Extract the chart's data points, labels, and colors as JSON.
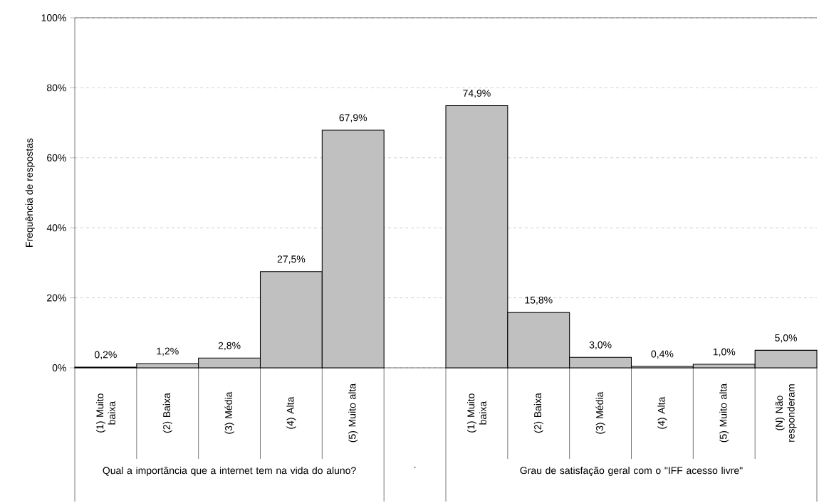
{
  "chart_data": {
    "type": "bar",
    "ylabel": "Frequência de respostas",
    "categories": [
      "(1) Muito baixa",
      "(2) Baixa",
      "(3) Média",
      "(4) Alta",
      "(5) Muito alta",
      null,
      "(1) Muito baixa",
      "(2) Baixa",
      "(3) Média",
      "(4) Alta",
      "(5) Muito alta",
      "(N) Não responderam"
    ],
    "values": [
      0.2,
      1.2,
      2.8,
      27.5,
      67.9,
      null,
      74.9,
      15.8,
      3.0,
      0.4,
      1.0,
      5.0
    ],
    "value_labels": [
      "0,2%",
      "1,2%",
      "2,8%",
      "27,5%",
      "67,9%",
      null,
      "74,9%",
      "15,8%",
      "3,0%",
      "0,4%",
      "1,0%",
      "5,0%"
    ],
    "color": "#c0c0c0",
    "ylim": [
      0,
      100
    ],
    "yticks": [
      {
        "value": 0,
        "label": "0%"
      },
      {
        "value": 20,
        "label": "20%"
      },
      {
        "value": 40,
        "label": "40%"
      },
      {
        "value": 60,
        "label": "60%"
      },
      {
        "value": 80,
        "label": "80%"
      },
      {
        "value": 100,
        "label": "100%"
      }
    ],
    "grid": "y",
    "annotations": [
      "Qual a importância que a internet tem na vida do aluno?",
      ".",
      "Grau de satisfação geral com o \"IFF acesso livre\""
    ]
  }
}
